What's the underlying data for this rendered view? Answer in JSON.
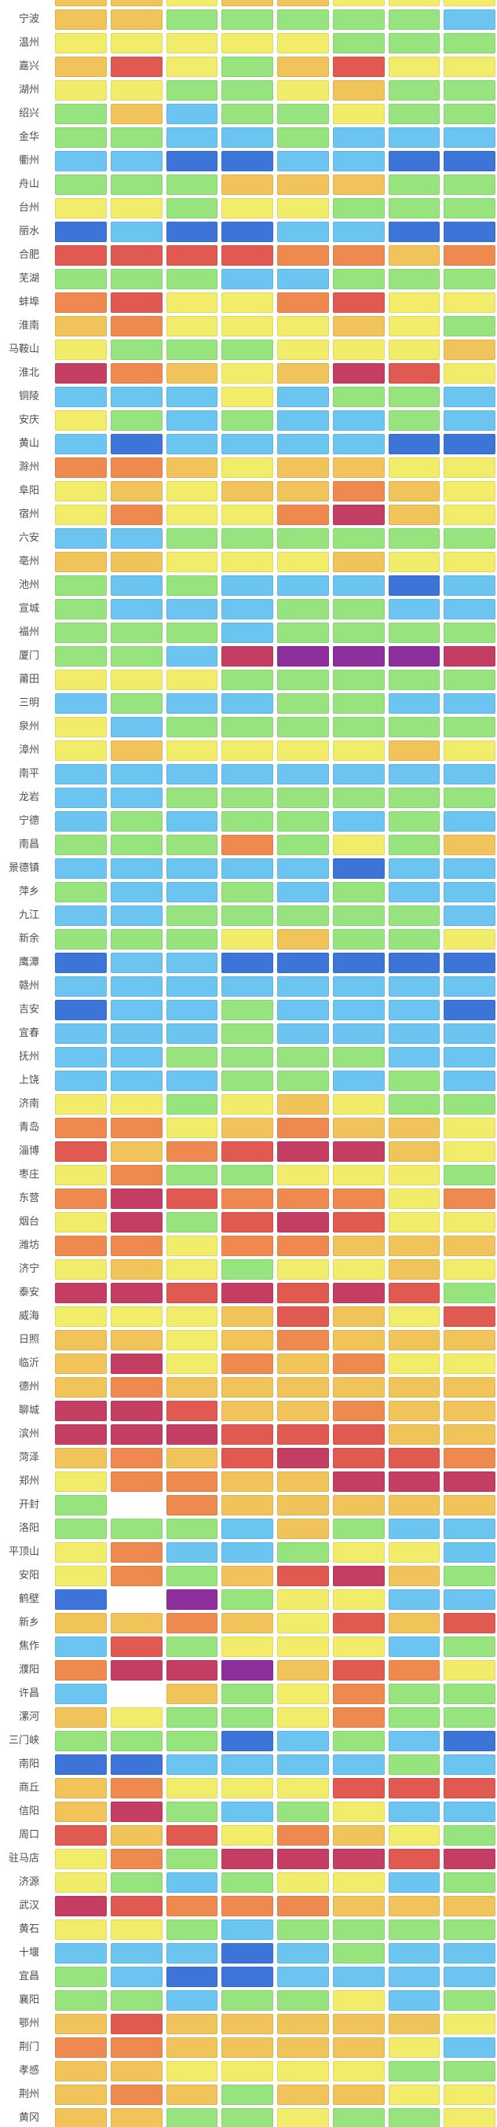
{
  "chart_data": {
    "type": "heatmap",
    "columns": 8,
    "palette": {
      "B": "#3D74D8",
      "LB": "#6CC5F0",
      "G": "#97E47F",
      "Y": "#F2EC6B",
      "GO": "#F0C45A",
      "O": "#EE8A50",
      "R": "#E05A52",
      "C": "#C43E64",
      "P": "#8E2F9E",
      "W": "#FFFFFF"
    },
    "palette_names": {
      "B": "blue",
      "LB": "light-blue",
      "G": "green",
      "Y": "yellow",
      "GO": "gold",
      "O": "orange",
      "R": "red",
      "C": "crimson",
      "P": "purple",
      "W": "white-missing"
    },
    "partial_top_row": {
      "label": "",
      "cells": [
        "GO",
        "GO",
        "Y",
        "GO",
        "GO",
        "Y",
        "Y",
        "Y"
      ]
    },
    "rows": [
      {
        "label": "宁波",
        "cells": [
          "GO",
          "GO",
          "G",
          "G",
          "G",
          "G",
          "G",
          "LB"
        ]
      },
      {
        "label": "温州",
        "cells": [
          "Y",
          "Y",
          "Y",
          "Y",
          "Y",
          "G",
          "G",
          "G"
        ]
      },
      {
        "label": "嘉兴",
        "cells": [
          "GO",
          "R",
          "Y",
          "G",
          "GO",
          "R",
          "Y",
          "Y"
        ]
      },
      {
        "label": "湖州",
        "cells": [
          "Y",
          "Y",
          "G",
          "G",
          "Y",
          "GO",
          "G",
          "G"
        ]
      },
      {
        "label": "绍兴",
        "cells": [
          "G",
          "GO",
          "LB",
          "G",
          "G",
          "Y",
          "G",
          "G"
        ]
      },
      {
        "label": "金华",
        "cells": [
          "G",
          "G",
          "LB",
          "LB",
          "G",
          "LB",
          "LB",
          "LB"
        ]
      },
      {
        "label": "衢州",
        "cells": [
          "LB",
          "LB",
          "B",
          "B",
          "LB",
          "LB",
          "B",
          "B"
        ]
      },
      {
        "label": "舟山",
        "cells": [
          "G",
          "G",
          "G",
          "GO",
          "GO",
          "GO",
          "G",
          "G"
        ]
      },
      {
        "label": "台州",
        "cells": [
          "Y",
          "Y",
          "G",
          "Y",
          "Y",
          "G",
          "G",
          "G"
        ]
      },
      {
        "label": "丽水",
        "cells": [
          "B",
          "LB",
          "B",
          "B",
          "LB",
          "LB",
          "B",
          "B"
        ]
      },
      {
        "label": "合肥",
        "cells": [
          "R",
          "R",
          "R",
          "R",
          "O",
          "O",
          "GO",
          "O"
        ]
      },
      {
        "label": "芜湖",
        "cells": [
          "G",
          "G",
          "G",
          "LB",
          "LB",
          "G",
          "G",
          "G"
        ]
      },
      {
        "label": "蚌埠",
        "cells": [
          "O",
          "R",
          "Y",
          "Y",
          "O",
          "R",
          "Y",
          "Y"
        ]
      },
      {
        "label": "淮南",
        "cells": [
          "GO",
          "O",
          "Y",
          "Y",
          "Y",
          "GO",
          "Y",
          "G"
        ]
      },
      {
        "label": "马鞍山",
        "cells": [
          "Y",
          "G",
          "G",
          "G",
          "Y",
          "Y",
          "Y",
          "GO"
        ]
      },
      {
        "label": "淮北",
        "cells": [
          "C",
          "O",
          "GO",
          "Y",
          "GO",
          "C",
          "R",
          "Y"
        ]
      },
      {
        "label": "铜陵",
        "cells": [
          "LB",
          "LB",
          "LB",
          "Y",
          "LB",
          "G",
          "G",
          "LB"
        ]
      },
      {
        "label": "安庆",
        "cells": [
          "Y",
          "G",
          "LB",
          "G",
          "LB",
          "LB",
          "G",
          "LB"
        ]
      },
      {
        "label": "黄山",
        "cells": [
          "LB",
          "B",
          "LB",
          "LB",
          "LB",
          "LB",
          "B",
          "B"
        ]
      },
      {
        "label": "滁州",
        "cells": [
          "O",
          "O",
          "GO",
          "Y",
          "GO",
          "GO",
          "Y",
          "Y"
        ]
      },
      {
        "label": "阜阳",
        "cells": [
          "Y",
          "GO",
          "Y",
          "GO",
          "GO",
          "O",
          "GO",
          "Y"
        ]
      },
      {
        "label": "宿州",
        "cells": [
          "Y",
          "O",
          "Y",
          "Y",
          "O",
          "C",
          "GO",
          "Y"
        ]
      },
      {
        "label": "六安",
        "cells": [
          "LB",
          "LB",
          "G",
          "G",
          "G",
          "G",
          "G",
          "G"
        ]
      },
      {
        "label": "亳州",
        "cells": [
          "GO",
          "GO",
          "Y",
          "Y",
          "Y",
          "GO",
          "Y",
          "Y"
        ]
      },
      {
        "label": "池州",
        "cells": [
          "G",
          "LB",
          "G",
          "LB",
          "LB",
          "LB",
          "B",
          "LB"
        ]
      },
      {
        "label": "宣城",
        "cells": [
          "G",
          "LB",
          "LB",
          "LB",
          "G",
          "G",
          "LB",
          "LB"
        ]
      },
      {
        "label": "福州",
        "cells": [
          "G",
          "G",
          "G",
          "LB",
          "G",
          "G",
          "G",
          "G"
        ]
      },
      {
        "label": "厦门",
        "cells": [
          "G",
          "G",
          "LB",
          "C",
          "P",
          "P",
          "P",
          "C"
        ]
      },
      {
        "label": "莆田",
        "cells": [
          "Y",
          "Y",
          "Y",
          "G",
          "G",
          "G",
          "G",
          "G"
        ]
      },
      {
        "label": "三明",
        "cells": [
          "LB",
          "G",
          "LB",
          "LB",
          "G",
          "G",
          "LB",
          "LB"
        ]
      },
      {
        "label": "泉州",
        "cells": [
          "Y",
          "LB",
          "G",
          "G",
          "G",
          "G",
          "G",
          "G"
        ]
      },
      {
        "label": "漳州",
        "cells": [
          "Y",
          "GO",
          "Y",
          "Y",
          "Y",
          "Y",
          "GO",
          "Y"
        ]
      },
      {
        "label": "南平",
        "cells": [
          "LB",
          "LB",
          "LB",
          "LB",
          "LB",
          "LB",
          "LB",
          "LB"
        ]
      },
      {
        "label": "龙岩",
        "cells": [
          "LB",
          "LB",
          "G",
          "G",
          "G",
          "G",
          "G",
          "G"
        ]
      },
      {
        "label": "宁德",
        "cells": [
          "LB",
          "G",
          "LB",
          "G",
          "G",
          "LB",
          "G",
          "LB"
        ]
      },
      {
        "label": "南昌",
        "cells": [
          "G",
          "G",
          "G",
          "O",
          "G",
          "Y",
          "G",
          "GO"
        ]
      },
      {
        "label": "景德镇",
        "cells": [
          "LB",
          "LB",
          "LB",
          "LB",
          "LB",
          "B",
          "LB",
          "LB"
        ]
      },
      {
        "label": "萍乡",
        "cells": [
          "G",
          "LB",
          "LB",
          "G",
          "LB",
          "G",
          "LB",
          "LB"
        ]
      },
      {
        "label": "九江",
        "cells": [
          "LB",
          "LB",
          "G",
          "G",
          "G",
          "G",
          "G",
          "LB"
        ]
      },
      {
        "label": "新余",
        "cells": [
          "G",
          "G",
          "G",
          "Y",
          "GO",
          "G",
          "G",
          "Y"
        ]
      },
      {
        "label": "鹰潭",
        "cells": [
          "B",
          "LB",
          "LB",
          "B",
          "B",
          "B",
          "B",
          "B"
        ]
      },
      {
        "label": "赣州",
        "cells": [
          "LB",
          "LB",
          "LB",
          "LB",
          "LB",
          "LB",
          "LB",
          "LB"
        ]
      },
      {
        "label": "吉安",
        "cells": [
          "B",
          "LB",
          "LB",
          "G",
          "LB",
          "LB",
          "LB",
          "B"
        ]
      },
      {
        "label": "宜春",
        "cells": [
          "LB",
          "LB",
          "LB",
          "G",
          "LB",
          "LB",
          "LB",
          "LB"
        ]
      },
      {
        "label": "抚州",
        "cells": [
          "LB",
          "LB",
          "G",
          "G",
          "G",
          "G",
          "LB",
          "LB"
        ]
      },
      {
        "label": "上饶",
        "cells": [
          "LB",
          "LB",
          "LB",
          "G",
          "G",
          "LB",
          "G",
          "LB"
        ]
      },
      {
        "label": "济南",
        "cells": [
          "Y",
          "Y",
          "G",
          "Y",
          "GO",
          "Y",
          "G",
          "G"
        ]
      },
      {
        "label": "青岛",
        "cells": [
          "O",
          "O",
          "Y",
          "GO",
          "O",
          "GO",
          "GO",
          "Y"
        ]
      },
      {
        "label": "淄博",
        "cells": [
          "R",
          "GO",
          "O",
          "R",
          "C",
          "C",
          "GO",
          "Y"
        ]
      },
      {
        "label": "枣庄",
        "cells": [
          "Y",
          "O",
          "G",
          "G",
          "Y",
          "Y",
          "Y",
          "G"
        ]
      },
      {
        "label": "东营",
        "cells": [
          "O",
          "C",
          "R",
          "O",
          "O",
          "O",
          "Y",
          "O"
        ]
      },
      {
        "label": "烟台",
        "cells": [
          "Y",
          "C",
          "G",
          "R",
          "C",
          "R",
          "Y",
          "Y"
        ]
      },
      {
        "label": "潍坊",
        "cells": [
          "O",
          "O",
          "Y",
          "O",
          "O",
          "GO",
          "GO",
          "GO"
        ]
      },
      {
        "label": "济宁",
        "cells": [
          "Y",
          "GO",
          "Y",
          "G",
          "Y",
          "Y",
          "GO",
          "Y"
        ]
      },
      {
        "label": "泰安",
        "cells": [
          "C",
          "C",
          "R",
          "C",
          "R",
          "C",
          "R",
          "G"
        ]
      },
      {
        "label": "威海",
        "cells": [
          "Y",
          "Y",
          "Y",
          "GO",
          "R",
          "GO",
          "Y",
          "R"
        ]
      },
      {
        "label": "日照",
        "cells": [
          "GO",
          "GO",
          "Y",
          "GO",
          "O",
          "GO",
          "GO",
          "GO"
        ]
      },
      {
        "label": "临沂",
        "cells": [
          "GO",
          "C",
          "Y",
          "O",
          "GO",
          "O",
          "Y",
          "Y"
        ]
      },
      {
        "label": "德州",
        "cells": [
          "GO",
          "O",
          "GO",
          "GO",
          "GO",
          "GO",
          "GO",
          "GO"
        ]
      },
      {
        "label": "聊城",
        "cells": [
          "C",
          "C",
          "R",
          "GO",
          "GO",
          "O",
          "GO",
          "GO"
        ]
      },
      {
        "label": "滨州",
        "cells": [
          "C",
          "C",
          "C",
          "R",
          "R",
          "R",
          "GO",
          "GO"
        ]
      },
      {
        "label": "菏泽",
        "cells": [
          "GO",
          "O",
          "GO",
          "R",
          "C",
          "R",
          "R",
          "O"
        ]
      },
      {
        "label": "郑州",
        "cells": [
          "Y",
          "O",
          "O",
          "GO",
          "GO",
          "C",
          "C",
          "C"
        ]
      },
      {
        "label": "开封",
        "cells": [
          "G",
          "W",
          "O",
          "GO",
          "GO",
          "GO",
          "GO",
          "GO"
        ]
      },
      {
        "label": "洛阳",
        "cells": [
          "G",
          "G",
          "G",
          "LB",
          "GO",
          "G",
          "LB",
          "LB"
        ]
      },
      {
        "label": "平顶山",
        "cells": [
          "Y",
          "O",
          "LB",
          "LB",
          "G",
          "Y",
          "Y",
          "LB"
        ]
      },
      {
        "label": "安阳",
        "cells": [
          "Y",
          "O",
          "G",
          "GO",
          "R",
          "C",
          "GO",
          "G"
        ]
      },
      {
        "label": "鹤壁",
        "cells": [
          "B",
          "W",
          "P",
          "G",
          "Y",
          "Y",
          "LB",
          "LB"
        ]
      },
      {
        "label": "新乡",
        "cells": [
          "GO",
          "GO",
          "O",
          "GO",
          "Y",
          "R",
          "GO",
          "R"
        ]
      },
      {
        "label": "焦作",
        "cells": [
          "LB",
          "R",
          "G",
          "Y",
          "Y",
          "Y",
          "LB",
          "G"
        ]
      },
      {
        "label": "濮阳",
        "cells": [
          "O",
          "C",
          "C",
          "P",
          "GO",
          "R",
          "O",
          "Y"
        ]
      },
      {
        "label": "许昌",
        "cells": [
          "LB",
          "W",
          "GO",
          "G",
          "Y",
          "O",
          "G",
          "G"
        ]
      },
      {
        "label": "漯河",
        "cells": [
          "GO",
          "Y",
          "G",
          "G",
          "Y",
          "O",
          "G",
          "G"
        ]
      },
      {
        "label": "三门峡",
        "cells": [
          "G",
          "G",
          "G",
          "B",
          "LB",
          "G",
          "LB",
          "B"
        ]
      },
      {
        "label": "南阳",
        "cells": [
          "B",
          "B",
          "LB",
          "LB",
          "LB",
          "LB",
          "G",
          "LB"
        ]
      },
      {
        "label": "商丘",
        "cells": [
          "GO",
          "O",
          "Y",
          "Y",
          "Y",
          "R",
          "R",
          "R"
        ]
      },
      {
        "label": "信阳",
        "cells": [
          "GO",
          "C",
          "G",
          "LB",
          "G",
          "Y",
          "LB",
          "LB"
        ]
      },
      {
        "label": "周口",
        "cells": [
          "R",
          "GO",
          "R",
          "Y",
          "O",
          "GO",
          "Y",
          "G"
        ]
      },
      {
        "label": "驻马店",
        "cells": [
          "Y",
          "O",
          "G",
          "C",
          "C",
          "C",
          "R",
          "C"
        ]
      },
      {
        "label": "济源",
        "cells": [
          "Y",
          "G",
          "LB",
          "G",
          "Y",
          "Y",
          "LB",
          "G"
        ]
      },
      {
        "label": "武汉",
        "cells": [
          "C",
          "R",
          "O",
          "O",
          "O",
          "GO",
          "GO",
          "GO"
        ]
      },
      {
        "label": "黄石",
        "cells": [
          "Y",
          "Y",
          "G",
          "LB",
          "G",
          "G",
          "G",
          "G"
        ]
      },
      {
        "label": "十堰",
        "cells": [
          "LB",
          "LB",
          "LB",
          "B",
          "LB",
          "G",
          "LB",
          "LB"
        ]
      },
      {
        "label": "宜昌",
        "cells": [
          "G",
          "LB",
          "B",
          "B",
          "LB",
          "LB",
          "LB",
          "LB"
        ]
      },
      {
        "label": "襄阳",
        "cells": [
          "G",
          "G",
          "LB",
          "G",
          "G",
          "Y",
          "LB",
          "G"
        ]
      },
      {
        "label": "鄂州",
        "cells": [
          "GO",
          "R",
          "GO",
          "GO",
          "GO",
          "GO",
          "GO",
          "Y"
        ]
      },
      {
        "label": "荆门",
        "cells": [
          "O",
          "O",
          "GO",
          "GO",
          "GO",
          "GO",
          "Y",
          "LB"
        ]
      },
      {
        "label": "孝感",
        "cells": [
          "GO",
          "GO",
          "Y",
          "Y",
          "Y",
          "Y",
          "G",
          "G"
        ]
      },
      {
        "label": "荆州",
        "cells": [
          "GO",
          "O",
          "GO",
          "G",
          "GO",
          "GO",
          "Y",
          "Y"
        ]
      },
      {
        "label": "黄冈",
        "cells": [
          "GO",
          "GO",
          "G",
          "G",
          "Y",
          "G",
          "G",
          "Y"
        ]
      }
    ]
  }
}
